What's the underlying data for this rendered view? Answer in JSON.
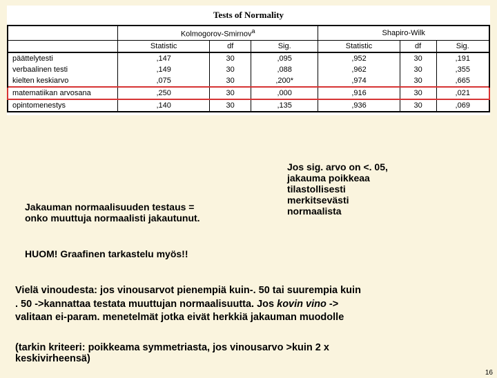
{
  "table": {
    "title": "Tests of Normality",
    "group1": "Kolmogorov-Smirnov",
    "group1_sup": "a",
    "group2": "Shapiro-Wilk",
    "cols": {
      "stat": "Statistic",
      "df": "df",
      "sig": "Sig."
    },
    "rows": [
      {
        "label": "päättelytesti",
        "ks_stat": ",147",
        "ks_df": "30",
        "ks_sig": ",095",
        "sw_stat": ",952",
        "sw_df": "30",
        "sw_sig": ",191",
        "hl": false
      },
      {
        "label": "verbaalinen testi",
        "ks_stat": ",149",
        "ks_df": "30",
        "ks_sig": ",088",
        "sw_stat": ",962",
        "sw_df": "30",
        "sw_sig": ",355",
        "hl": false
      },
      {
        "label": "kielten keskiarvo",
        "ks_stat": ",075",
        "ks_df": "30",
        "ks_sig": ",200*",
        "sw_stat": ",974",
        "sw_df": "30",
        "sw_sig": ",665",
        "hl": false
      },
      {
        "label": "matematiikan arvosana",
        "ks_stat": ",250",
        "ks_df": "30",
        "ks_sig": ",000",
        "sw_stat": ",916",
        "sw_df": "30",
        "sw_sig": ",021",
        "hl": true
      },
      {
        "label": "opintomenestys",
        "ks_stat": ",140",
        "ks_df": "30",
        "ks_sig": ",135",
        "sw_stat": ",936",
        "sw_df": "30",
        "sw_sig": ",069",
        "hl": false
      }
    ]
  },
  "annot": {
    "box1a": "Jakauman normaalisuuden testaus =",
    "box1b": "onko muuttuja normaalisti jakautunut.",
    "box2a": "Jos sig. arvo on <. 05,",
    "box2b": "jakauma poikkeaa",
    "box2c": "tilastollisesti",
    "box2d": "merkitsevästi",
    "box2e": "normaalista",
    "box3": "HUOM! Graafinen tarkastelu myös!!",
    "box4a": "Vielä vinoudesta: jos vinousarvot pienempiä kuin-. 50 tai suurempia kuin",
    "box4b": ". 50 ->kannattaa testata muuttujan normaalisuutta. Jos ",
    "box4b_em": "kovin vino",
    "box4c": " ->",
    "box4d": "valitaan ei-param. menetelmät jotka eivät herkkiä jakauman muodolle",
    "box5a": "(tarkin kriteeri: poikkeama symmetriasta, jos vinousarvo >kuin 2 x",
    "box5b": "keskivirheensä)"
  },
  "pagenum": "16",
  "colors": {
    "bg": "#faf4de",
    "highlight": "#d63333"
  }
}
